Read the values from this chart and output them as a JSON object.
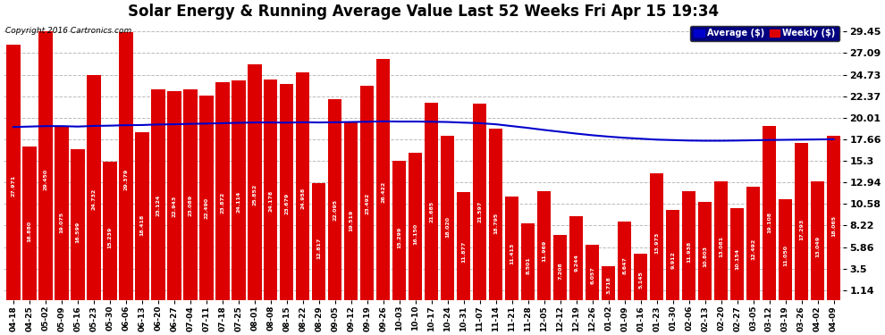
{
  "title": "Solar Energy & Running Average Value Last 52 Weeks Fri Apr 15 19:34",
  "copyright": "Copyright 2016 Cartronics.com",
  "categories": [
    "04-18",
    "04-25",
    "05-02",
    "05-09",
    "05-16",
    "05-23",
    "05-30",
    "06-06",
    "06-13",
    "06-20",
    "06-27",
    "07-04",
    "07-11",
    "07-18",
    "07-25",
    "08-01",
    "08-08",
    "08-15",
    "08-22",
    "08-29",
    "09-05",
    "09-12",
    "09-19",
    "09-26",
    "10-03",
    "10-10",
    "10-17",
    "10-24",
    "10-31",
    "11-07",
    "11-14",
    "11-21",
    "11-28",
    "12-05",
    "12-12",
    "12-19",
    "12-26",
    "01-02",
    "01-09",
    "01-16",
    "01-23",
    "01-30",
    "02-06",
    "02-13",
    "02-20",
    "02-27",
    "03-05",
    "03-12",
    "03-19",
    "03-26",
    "04-02",
    "04-09"
  ],
  "bar_values": [
    27.971,
    16.88,
    29.45,
    19.075,
    16.599,
    24.732,
    15.239,
    29.379,
    18.418,
    23.124,
    22.943,
    23.089,
    22.49,
    23.872,
    24.114,
    25.852,
    24.178,
    23.679,
    24.958,
    12.817,
    22.095,
    19.519,
    23.492,
    26.422,
    15.299,
    16.15,
    21.685,
    18.02,
    11.877,
    21.597,
    18.795,
    11.413,
    8.501,
    11.969,
    7.208,
    9.244,
    6.057,
    3.718,
    8.647,
    5.145,
    13.973,
    9.912,
    11.938,
    10.803,
    13.081,
    10.154,
    12.492,
    19.108,
    11.05,
    17.293,
    13.049,
    18.065
  ],
  "avg_values": [
    19.0,
    19.05,
    19.1,
    19.1,
    19.05,
    19.12,
    19.15,
    19.2,
    19.22,
    19.28,
    19.3,
    19.35,
    19.38,
    19.42,
    19.46,
    19.5,
    19.5,
    19.48,
    19.52,
    19.5,
    19.52,
    19.55,
    19.58,
    19.62,
    19.6,
    19.6,
    19.58,
    19.55,
    19.48,
    19.42,
    19.3,
    19.1,
    18.9,
    18.68,
    18.48,
    18.28,
    18.1,
    17.95,
    17.82,
    17.72,
    17.62,
    17.57,
    17.52,
    17.5,
    17.5,
    17.52,
    17.55,
    17.58,
    17.6,
    17.62,
    17.64,
    17.66
  ],
  "bar_color": "#dd0000",
  "avg_line_color": "#0000cc",
  "background_color": "#ffffff",
  "grid_color": "#bbbbbb",
  "title_fontsize": 12,
  "yticks": [
    1.14,
    3.5,
    5.86,
    8.22,
    10.58,
    12.94,
    15.3,
    17.66,
    20.01,
    22.37,
    24.73,
    27.09,
    29.45
  ],
  "ymin": 0,
  "ymax": 30.59,
  "legend_avg_label": "Average ($)",
  "legend_weekly_label": "Weekly ($)"
}
